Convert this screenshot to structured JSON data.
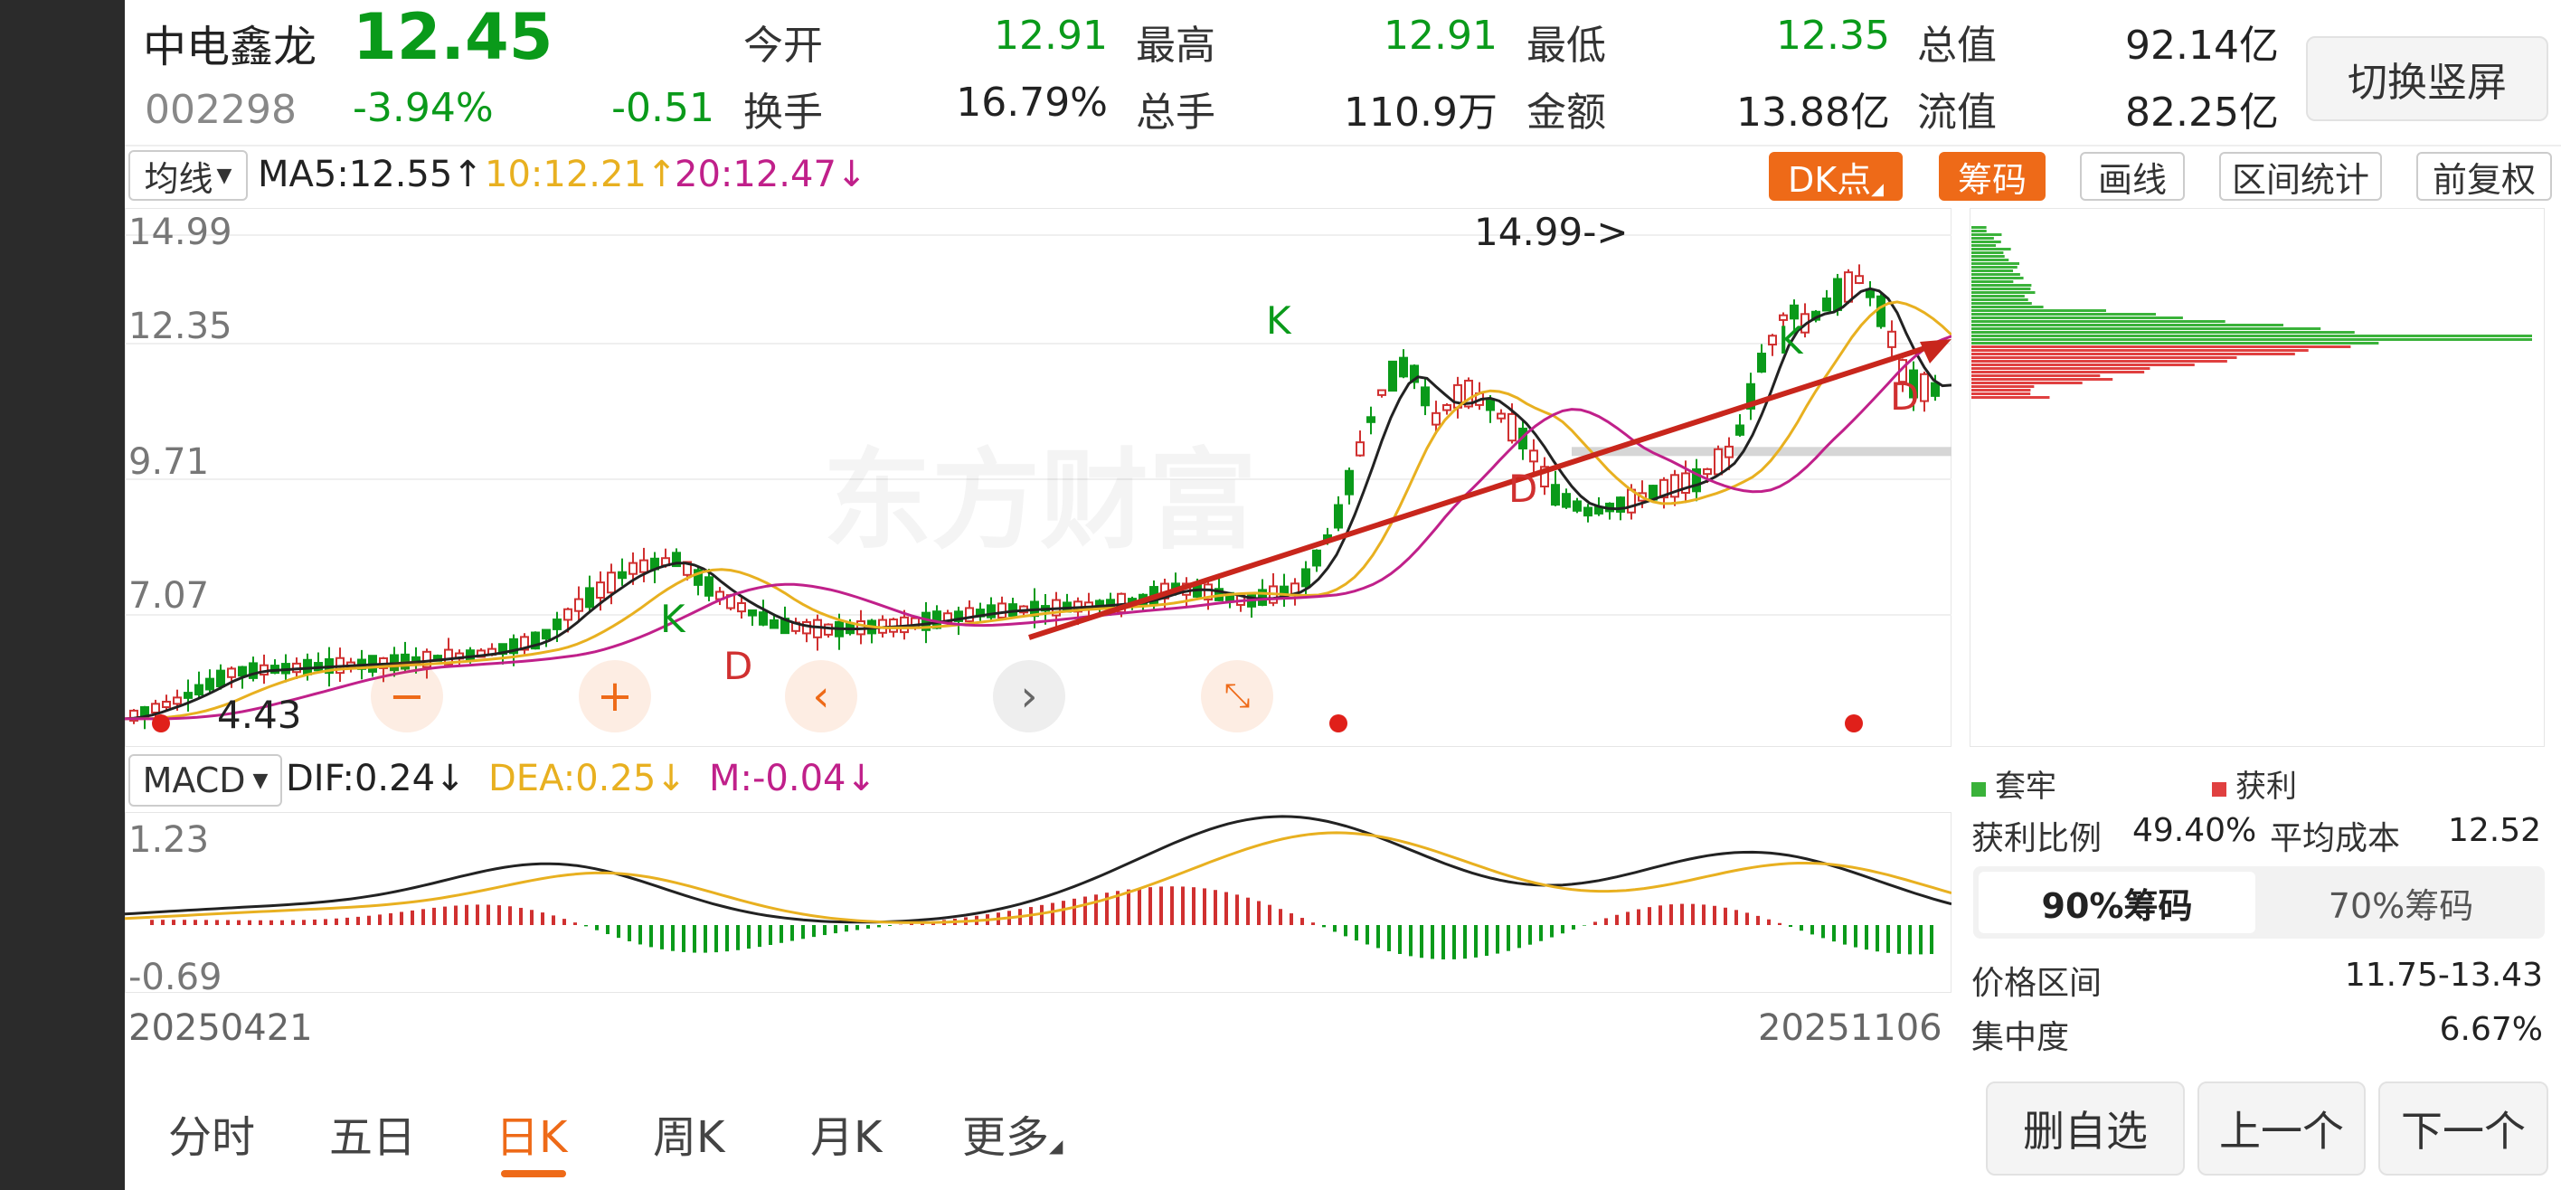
{
  "stock": {
    "name": "中电鑫龙",
    "price": "12.45",
    "code": "002298",
    "change_pct": "-3.94%",
    "change": "-0.51"
  },
  "quote": [
    {
      "label": "今开",
      "value": "12.91",
      "color": "#0a9a1a"
    },
    {
      "label": "最高",
      "value": "12.91",
      "color": "#0a9a1a"
    },
    {
      "label": "最低",
      "value": "12.35",
      "color": "#0a9a1a"
    },
    {
      "label": "总值",
      "value": "92.14亿",
      "color": "#222222"
    },
    {
      "label": "换手",
      "value": "16.79%",
      "color": "#222222"
    },
    {
      "label": "总手",
      "value": "110.9万",
      "color": "#222222"
    },
    {
      "label": "金额",
      "value": "13.88亿",
      "color": "#222222"
    },
    {
      "label": "流值",
      "value": "82.25亿",
      "color": "#222222"
    }
  ],
  "switch_label": "切换竖屏",
  "ma_bar": {
    "selector": "均线",
    "ma5": "MA5:12.55",
    "ma10": "10:12.21",
    "ma20": "20:12.47"
  },
  "tools": [
    "DK点",
    "筹码",
    "画线",
    "区间统计",
    "前复权"
  ],
  "price_axis": [
    "14.99",
    "12.35",
    "9.71",
    "7.07",
    "4.43"
  ],
  "annotations": {
    "high_label": "14.99->",
    "low_label": "4.43",
    "k_label": "K",
    "d_label": "D",
    "watermark": "东方财富"
  },
  "macd_bar": {
    "selector": "MACD",
    "dif": "DIF:0.24",
    "dea": "DEA:0.25",
    "m": "M:-0.04"
  },
  "macd_axis": [
    "1.23",
    "-0.69"
  ],
  "dates": {
    "start": "20250421",
    "end": "20251106"
  },
  "tabs": [
    "分时",
    "五日",
    "日K",
    "周K",
    "月K",
    "更多"
  ],
  "active_tab": "日K",
  "chip_panel": {
    "legend_trapped": "套牢",
    "legend_profit": "获利",
    "profit_ratio_label": "获利比例",
    "profit_ratio": "49.40%",
    "avg_cost_label": "平均成本",
    "avg_cost": "12.52",
    "tab_90": "90%筹码",
    "tab_70": "70%筹码",
    "range_label": "价格区间",
    "range": "11.75-13.43",
    "concentration_label": "集中度",
    "concentration": "6.67%"
  },
  "bottom_buttons": [
    "删自选",
    "上一个",
    "下一个"
  ],
  "colors": {
    "up": "#d03030",
    "down": "#0a9a1a",
    "ma5": "#222222",
    "ma10": "#e8b020",
    "ma20": "#c0208a",
    "accent": "#ee6a18"
  }
}
